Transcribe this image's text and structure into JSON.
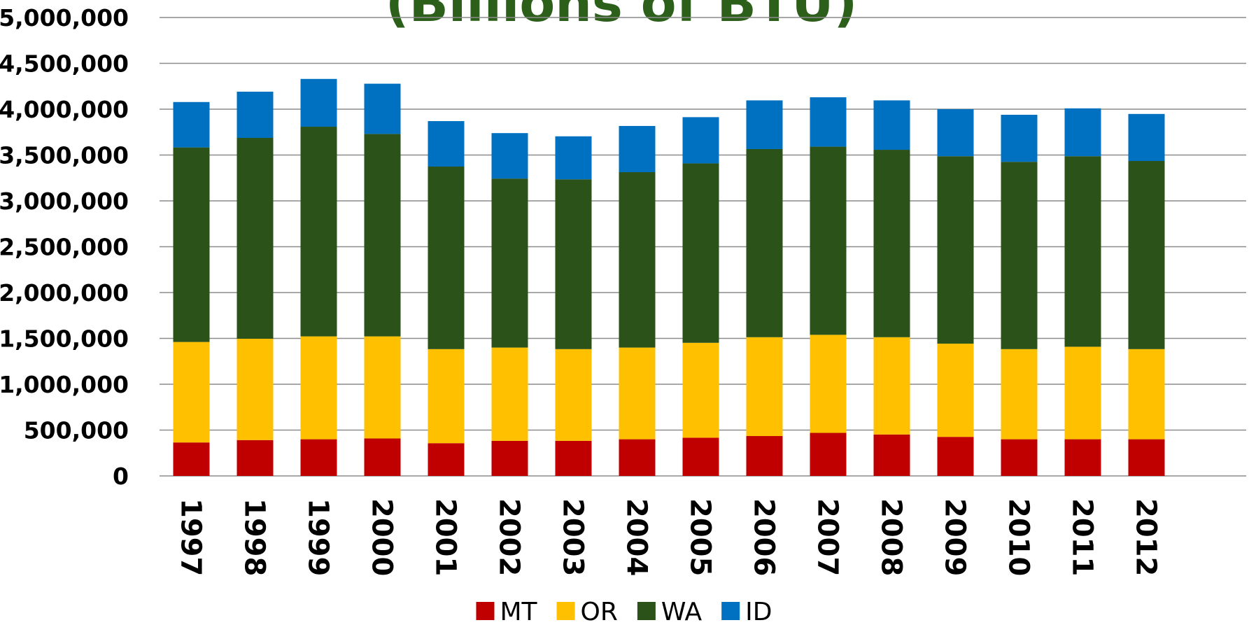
{
  "chart_data": {
    "type": "stacked_bar",
    "title": "(Billions of BTU)",
    "categories": [
      "1997",
      "1998",
      "1999",
      "2000",
      "2001",
      "2002",
      "2003",
      "2004",
      "2005",
      "2006",
      "2007",
      "2008",
      "2009",
      "2010",
      "2011",
      "2012"
    ],
    "series": [
      {
        "name": "MT",
        "color": "#c00000",
        "values": [
          365000,
          391000,
          400000,
          409000,
          357000,
          383000,
          383000,
          400000,
          417000,
          435000,
          470000,
          452000,
          426000,
          400000,
          400000,
          400000
        ]
      },
      {
        "name": "OR",
        "color": "#ffc000",
        "values": [
          1096000,
          1105000,
          1122000,
          1113000,
          1026000,
          1017000,
          1000000,
          1000000,
          1035000,
          1078000,
          1069000,
          1061000,
          1017000,
          983000,
          1009000,
          983000
        ]
      },
      {
        "name": "WA",
        "color": "#2b5219",
        "values": [
          2122000,
          2191000,
          2287000,
          2208000,
          1991000,
          1843000,
          1852000,
          1913000,
          1957000,
          2052000,
          2052000,
          2044000,
          2044000,
          2043000,
          2078000,
          2052000
        ]
      },
      {
        "name": "ID",
        "color": "#0070c0",
        "values": [
          495000,
          504000,
          521000,
          548000,
          496000,
          496000,
          469000,
          504000,
          504000,
          531000,
          539000,
          539000,
          513000,
          513000,
          522000,
          513000
        ]
      }
    ],
    "ylim": [
      0,
      5000000
    ],
    "yticks": [
      0,
      {
        "value": 500000,
        "label": "500,000"
      },
      {
        "value": 1000000,
        "label": "1,000,000"
      },
      {
        "value": 1500000,
        "label": "1,500,000"
      },
      {
        "value": 2000000,
        "label": "2,000,000"
      },
      {
        "value": 2500000,
        "label": "2,500,000"
      },
      {
        "value": 3000000,
        "label": "3,000,000"
      },
      {
        "value": 3500000,
        "label": "3,500,000"
      },
      {
        "value": 4000000,
        "label": "4,000,000"
      },
      {
        "value": 4500000,
        "label": "4,500,000"
      },
      {
        "value": 5000000,
        "label": "5,000,000"
      }
    ],
    "grid": true,
    "legend": "bottom"
  }
}
